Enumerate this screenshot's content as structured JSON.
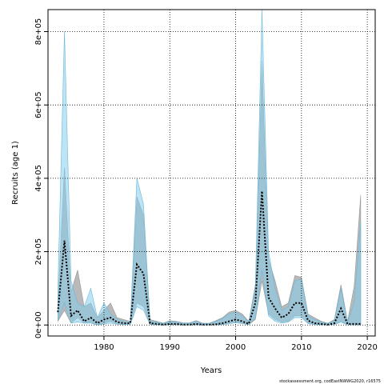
{
  "chart_data": {
    "type": "area",
    "xlabel": "Years",
    "ylabel": "Recruits (age 1)",
    "caption": "stockassessment.org, codEastNWWG2020, r16575",
    "xlim": [
      1971.5,
      2021.2
    ],
    "ylim": [
      -30000,
      860000
    ],
    "x_ticks": [
      1980,
      1990,
      2000,
      2010,
      2020
    ],
    "x_tick_labels": [
      "1980",
      "1990",
      "2000",
      "2010",
      "2020"
    ],
    "y_ticks": [
      0,
      200000,
      400000,
      600000,
      800000
    ],
    "y_tick_labels": [
      "0e+00",
      "2e+05",
      "4e+05",
      "6e+05",
      "8e+05"
    ],
    "grid": true,
    "colors": {
      "gray_band": "#808080",
      "blue_band": "#87ceeb",
      "estimate_line": "#000000",
      "grid": "#000000"
    },
    "years": [
      1973,
      1974,
      1975,
      1976,
      1977,
      1978,
      1979,
      1980,
      1981,
      1982,
      1983,
      1984,
      1985,
      1986,
      1987,
      1988,
      1989,
      1990,
      1991,
      1992,
      1993,
      1994,
      1995,
      1996,
      1997,
      1998,
      1999,
      2000,
      2001,
      2002,
      2003,
      2004,
      2005,
      2006,
      2007,
      2008,
      2009,
      2010,
      2011,
      2012,
      2013,
      2014,
      2015,
      2016,
      2017,
      2018,
      2019
    ],
    "series": [
      {
        "role": "band-a",
        "lower": [
          10000,
          40000,
          5000,
          20000,
          5000,
          8000,
          0,
          5000,
          10000,
          3000,
          2000,
          3000,
          60000,
          50000,
          2000,
          1000,
          0,
          1000,
          1000,
          0,
          0,
          1000,
          0,
          0,
          0,
          2000,
          5000,
          8000,
          5000,
          1000,
          15000,
          120000,
          30000,
          15000,
          8000,
          10000,
          25000,
          25000,
          5000,
          2000,
          1000,
          0,
          2000,
          10000,
          0,
          0,
          0
        ],
        "upper": [
          60000,
          430000,
          90000,
          150000,
          50000,
          60000,
          20000,
          40000,
          60000,
          20000,
          15000,
          10000,
          350000,
          300000,
          15000,
          10000,
          5000,
          12000,
          10000,
          6000,
          6000,
          12000,
          5000,
          5000,
          12000,
          20000,
          35000,
          40000,
          30000,
          10000,
          110000,
          720000,
          180000,
          120000,
          50000,
          60000,
          135000,
          130000,
          30000,
          20000,
          10000,
          5000,
          15000,
          110000,
          10000,
          105000,
          355000
        ]
      },
      {
        "role": "band-b",
        "lower": [
          15000,
          60000,
          5000,
          8000,
          5000,
          5000,
          0,
          3000,
          5000,
          2000,
          1000,
          1000,
          50000,
          40000,
          1000,
          500,
          0,
          500,
          500,
          0,
          0,
          500,
          0,
          0,
          0,
          1000,
          3000,
          6000,
          4000,
          500,
          20000,
          150000,
          25000,
          10000,
          5000,
          8000,
          20000,
          20000,
          4000,
          1000,
          500,
          0,
          1000,
          8000,
          0,
          0,
          0
        ],
        "upper": [
          100000,
          800000,
          120000,
          60000,
          50000,
          100000,
          20000,
          60000,
          30000,
          15000,
          10000,
          8000,
          400000,
          330000,
          10000,
          8000,
          4000,
          10000,
          8000,
          5000,
          5000,
          10000,
          4000,
          4000,
          10000,
          18000,
          30000,
          35000,
          25000,
          8000,
          100000,
          860000,
          200000,
          100000,
          40000,
          50000,
          120000,
          125000,
          25000,
          15000,
          8000,
          4000,
          12000,
          100000,
          8000,
          60000,
          280000
        ]
      },
      {
        "role": "estimate",
        "values": [
          35000,
          230000,
          25000,
          40000,
          10000,
          20000,
          5000,
          15000,
          20000,
          8000,
          5000,
          5000,
          165000,
          140000,
          5000,
          3000,
          1000,
          3000,
          3000,
          1000,
          1000,
          3000,
          1000,
          1000,
          2000,
          5000,
          10000,
          15000,
          10000,
          3000,
          60000,
          365000,
          75000,
          45000,
          20000,
          30000,
          60000,
          60000,
          12000,
          5000,
          3000,
          1000,
          5000,
          45000,
          3000,
          3000,
          3000
        ]
      }
    ]
  }
}
